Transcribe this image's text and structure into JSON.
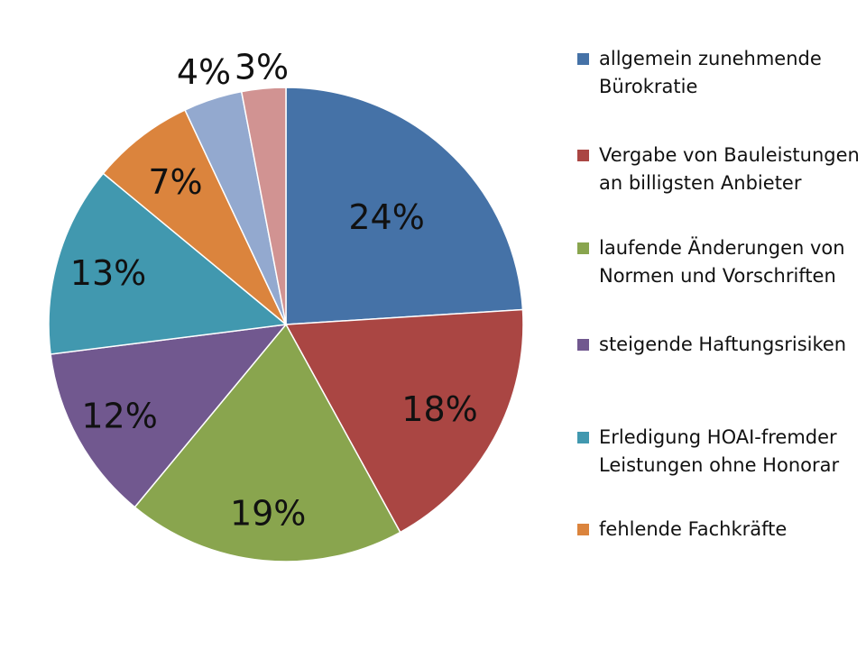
{
  "chart_data": {
    "type": "pie",
    "title": "",
    "labels": [
      "allgemein zunehmende Bürokratie",
      "Vergabe von Bauleistungen an billigsten Anbieter",
      "laufende Änderungen von Normen und Vorschriften",
      "steigende Haftungsrisiken",
      "Erledigung HOAI-fremder Leistungen ohne Honorar",
      "fehlende Fachkräfte",
      "",
      ""
    ],
    "values": [
      24,
      18,
      19,
      12,
      13,
      7,
      4,
      3
    ],
    "value_labels": [
      "24%",
      "18%",
      "19%",
      "12%",
      "13%",
      "7%",
      "4%",
      "3%"
    ],
    "colors": [
      "#4572A7",
      "#AA4643",
      "#89A54E",
      "#71588F",
      "#4198AF",
      "#DB843D",
      "#93A9CF",
      "#D19392"
    ],
    "legend_position": "right",
    "start_angle": "12 o'clock",
    "direction": "clockwise"
  }
}
